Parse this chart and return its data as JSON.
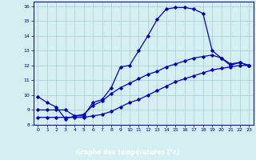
{
  "xlabel": "Graphe des temératures (°c)",
  "bg_color": "#d4eff2",
  "line_color": "#0000bb",
  "grid_color": "#b0d0d4",
  "xlim": [
    -0.5,
    23.5
  ],
  "ylim": [
    8,
    16.3
  ],
  "yticks": [
    8,
    9,
    10,
    11,
    12,
    13,
    14,
    15,
    16
  ],
  "xticks": [
    0,
    1,
    2,
    3,
    4,
    5,
    6,
    7,
    8,
    9,
    10,
    11,
    12,
    13,
    14,
    15,
    16,
    17,
    18,
    19,
    20,
    21,
    22,
    23
  ],
  "line1_x": [
    0,
    1,
    2,
    3,
    4,
    5,
    6,
    7,
    8,
    9,
    10,
    11,
    12,
    13,
    14,
    15,
    16,
    17,
    18,
    19,
    20,
    21,
    22,
    23
  ],
  "line1_y": [
    9.9,
    9.5,
    9.2,
    8.4,
    8.6,
    8.6,
    9.5,
    9.7,
    10.5,
    11.9,
    12.0,
    13.0,
    14.0,
    15.1,
    15.8,
    15.9,
    15.9,
    15.8,
    15.5,
    13.0,
    12.5,
    12.0,
    12.2,
    12.0
  ],
  "line2_x": [
    0,
    1,
    2,
    3,
    4,
    5,
    6,
    7,
    8,
    9,
    10,
    11,
    12,
    13,
    14,
    15,
    16,
    17,
    18,
    19,
    20,
    21,
    22,
    23
  ],
  "line2_y": [
    9.0,
    9.0,
    9.0,
    9.0,
    8.6,
    8.7,
    9.3,
    9.6,
    10.1,
    10.5,
    10.8,
    11.1,
    11.4,
    11.6,
    11.9,
    12.1,
    12.3,
    12.5,
    12.6,
    12.7,
    12.5,
    12.1,
    12.2,
    12.0
  ],
  "line3_x": [
    0,
    1,
    2,
    3,
    4,
    5,
    6,
    7,
    8,
    9,
    10,
    11,
    12,
    13,
    14,
    15,
    16,
    17,
    18,
    19,
    20,
    21,
    22,
    23
  ],
  "line3_y": [
    8.5,
    8.5,
    8.5,
    8.5,
    8.5,
    8.5,
    8.6,
    8.7,
    8.9,
    9.2,
    9.5,
    9.7,
    10.0,
    10.3,
    10.6,
    10.9,
    11.1,
    11.3,
    11.5,
    11.7,
    11.8,
    11.9,
    12.0,
    12.0
  ]
}
